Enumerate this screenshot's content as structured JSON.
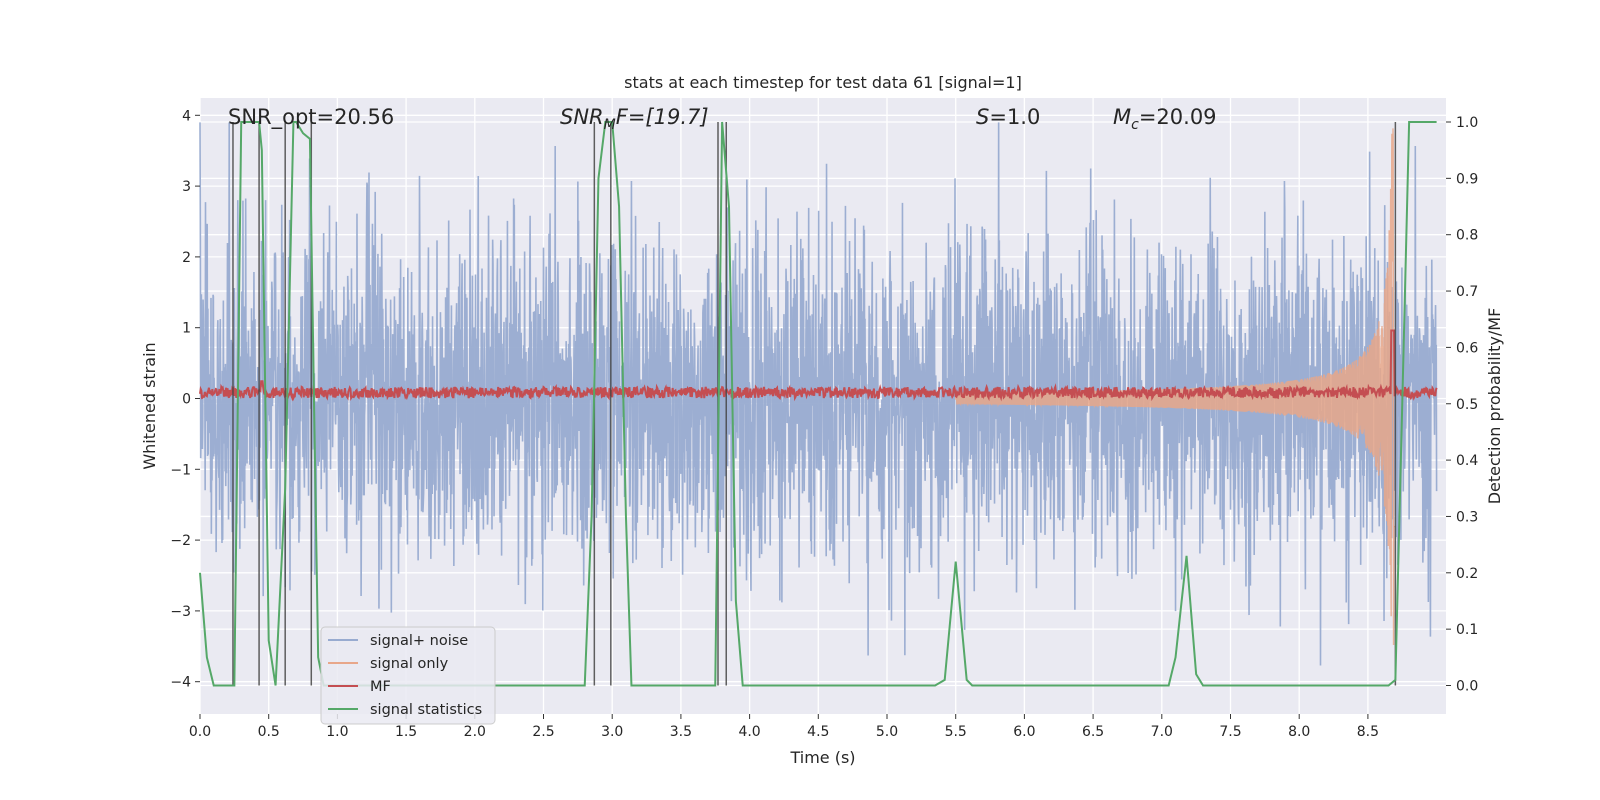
{
  "chart_data": {
    "type": "line",
    "title": "stats at each timestep for test data 61 [signal=1]",
    "xlabel": "Time (s)",
    "ylabel_left": "Whitened strain",
    "ylabel_right": "Detection probability/MF",
    "xlim": [
      0.0,
      9.0
    ],
    "ylim_left": [
      -4.45,
      4.25
    ],
    "ylim_right": [
      -0.045,
      1.045
    ],
    "grid": true,
    "xticks": [
      "0.0",
      "0.5",
      "1.0",
      "1.5",
      "2.0",
      "2.5",
      "3.0",
      "3.5",
      "4.0",
      "4.5",
      "5.0",
      "5.5",
      "6.0",
      "6.5",
      "7.0",
      "7.5",
      "8.0",
      "8.5"
    ],
    "yticks_left": [
      "−4",
      "−3",
      "−2",
      "−1",
      "0",
      "1",
      "2",
      "3",
      "4"
    ],
    "yticks_right": [
      "0.0",
      "0.1",
      "0.2",
      "0.3",
      "0.4",
      "0.5",
      "0.6",
      "0.7",
      "0.8",
      "0.9",
      "1.0"
    ],
    "annotations": {
      "snr_opt": "SNR_opt=20.56",
      "snr_mf_main": "SNR",
      "snr_mf_sub": "M",
      "snr_mf_rest": "F=[19.7]",
      "s_main": "S",
      "s_rest": "=1.0",
      "mc_main": "M",
      "mc_sub": "c",
      "mc_rest": "=20.09"
    },
    "legend": {
      "position": "lower-left",
      "entries": [
        {
          "label": "signal+ noise",
          "color": "#98abd0"
        },
        {
          "label": "signal only",
          "color": "#e8a78a"
        },
        {
          "label": "MF",
          "color": "#c44e52"
        },
        {
          "label": "signal statistics",
          "color": "#55a868"
        }
      ]
    },
    "colors": {
      "plot_bg": "#eaeaf2",
      "grid": "#ffffff",
      "noise": "#98abd0",
      "signal": "#e8a78a",
      "mf": "#c44e52",
      "stats": "#55a868",
      "vline": "#444444"
    },
    "signal_statistics": {
      "x": [
        0.0,
        0.05,
        0.1,
        0.2,
        0.25,
        0.3,
        0.33,
        0.43,
        0.45,
        0.5,
        0.55,
        0.62,
        0.68,
        0.7,
        0.75,
        0.8,
        0.83,
        0.86,
        0.9,
        1.0,
        2.8,
        2.85,
        2.9,
        2.95,
        3.0,
        3.05,
        3.1,
        3.14,
        3.7,
        3.75,
        3.8,
        3.85,
        3.9,
        3.95,
        4.0,
        5.35,
        5.42,
        5.5,
        5.58,
        5.62,
        7.05,
        7.1,
        7.18,
        7.25,
        7.3,
        8.6,
        8.65,
        8.7,
        8.75,
        8.8,
        8.85,
        9.0
      ],
      "y": [
        0.2,
        0.05,
        0.0,
        0.0,
        0.0,
        1.0,
        1.0,
        1.0,
        0.95,
        0.08,
        0.0,
        0.35,
        1.0,
        1.0,
        0.98,
        0.97,
        0.5,
        0.05,
        0.0,
        0.0,
        0.0,
        0.3,
        0.9,
        1.0,
        1.0,
        0.85,
        0.3,
        0.0,
        0.0,
        0.0,
        1.0,
        0.85,
        0.15,
        0.0,
        0.0,
        0.0,
        0.01,
        0.22,
        0.01,
        0.0,
        0.0,
        0.05,
        0.23,
        0.02,
        0.0,
        0.0,
        0.0,
        0.01,
        0.5,
        1.0,
        1.0,
        1.0
      ]
    },
    "vertical_lines_x": [
      0.24,
      0.43,
      0.62,
      0.81,
      2.87,
      2.99,
      3.77,
      3.83,
      8.7
    ],
    "signal_only": {
      "start_time": 5.5,
      "merger_time": 8.7,
      "peak_amplitude": 4.0,
      "base_amplitude": 0.08
    },
    "noise": {
      "amplitude_sigma": 1.0,
      "duration": 9.0
    },
    "mf": {
      "baseline": 0.52,
      "fluctuation": 0.01,
      "peak_time": 8.68,
      "peak_value": 0.63
    }
  }
}
